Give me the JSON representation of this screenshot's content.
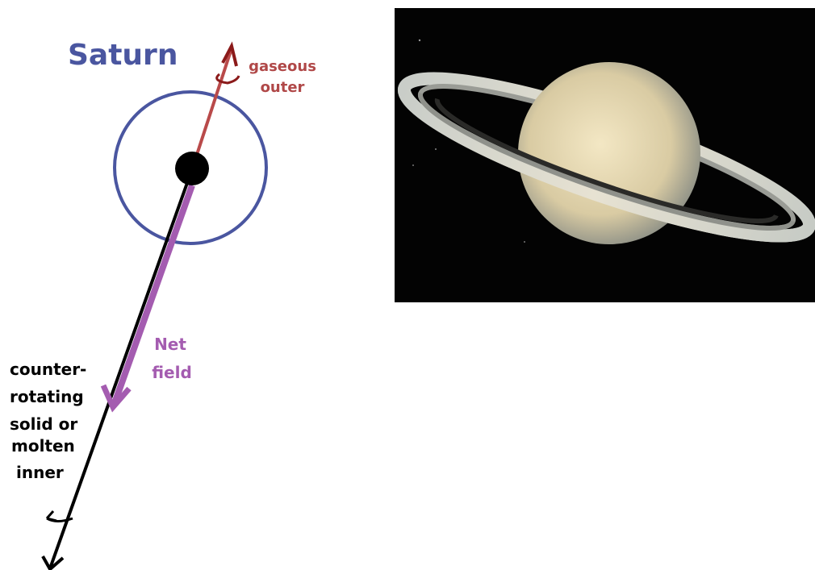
{
  "title": "Saturn",
  "labels": {
    "outer": [
      "gaseous",
      "outer"
    ],
    "net": [
      "Net",
      "field"
    ],
    "inner": [
      "counter-",
      "rotating",
      "solid or",
      "molten",
      "inner"
    ]
  }
}
